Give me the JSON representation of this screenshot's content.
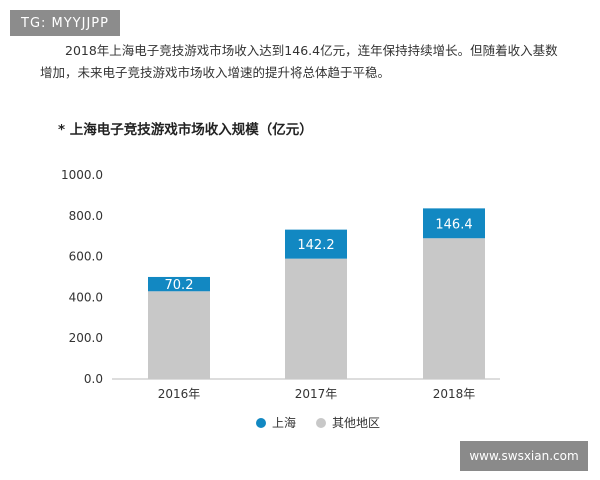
{
  "watermark_top": "TG: MYYJJPP",
  "watermark_bottom": "www.swsxian.com",
  "intro_text": "2018年上海电子竞技游戏市场收入达到146.4亿元，连年保持持续增长。但随着收入基数增加，未来电子竞技游戏市场收入增速的提升将总体趋于平稳。",
  "chart_data": {
    "type": "bar",
    "stacked": true,
    "title": "* 上海电子竞技游戏市场收入规模（亿元）",
    "categories": [
      "2016年",
      "2017年",
      "2018年"
    ],
    "series": [
      {
        "name": "其他地区",
        "color": "#c8c8c8",
        "values": [
          430,
          590,
          690
        ]
      },
      {
        "name": "上海",
        "color": "#1288c2",
        "values": [
          70.2,
          142.2,
          146.4
        ]
      }
    ],
    "data_labels": [
      "70.2",
      "142.2",
      "146.4"
    ],
    "yticks": [
      "0.0",
      "200.0",
      "400.0",
      "600.0",
      "800.0",
      "1000.0"
    ],
    "ylim": [
      0,
      1000
    ],
    "legend": [
      "上海",
      "其他地区"
    ],
    "legend_position": "bottom",
    "xlabel": "",
    "ylabel": ""
  }
}
